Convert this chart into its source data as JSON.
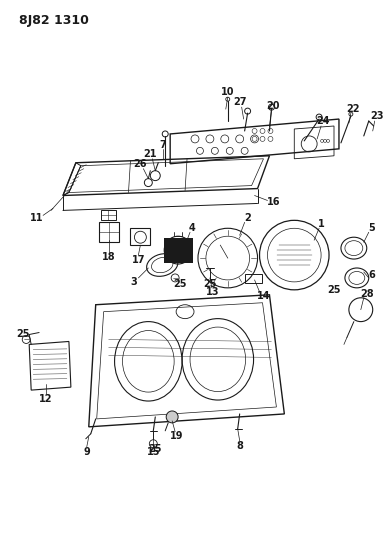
{
  "title": "8J82 1310",
  "background_color": "#ffffff",
  "title_fontsize": 9,
  "title_font_weight": "bold",
  "fig_width": 3.89,
  "fig_height": 5.33,
  "dpi": 100
}
